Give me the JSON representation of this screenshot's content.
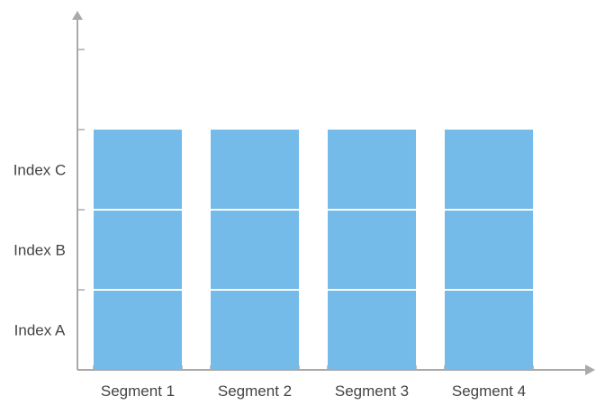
{
  "chart_data": {
    "type": "bar",
    "stacked": true,
    "categories": [
      "Segment 1",
      "Segment 2",
      "Segment 3",
      "Segment 4"
    ],
    "y_categories": [
      "Index A",
      "Index B",
      "Index C"
    ],
    "series": [
      {
        "values": [
          1,
          1,
          1,
          1
        ]
      },
      {
        "values": [
          1,
          1,
          1,
          1
        ]
      },
      {
        "values": [
          1,
          1,
          1,
          1
        ]
      }
    ],
    "ylim": [
      0,
      4
    ],
    "grid": false,
    "legend": "none",
    "colors": {
      "bar": "#74BBEA",
      "axis": "#AAAAAA",
      "segment_border": "#FFFFFF",
      "text": "#444444"
    }
  }
}
